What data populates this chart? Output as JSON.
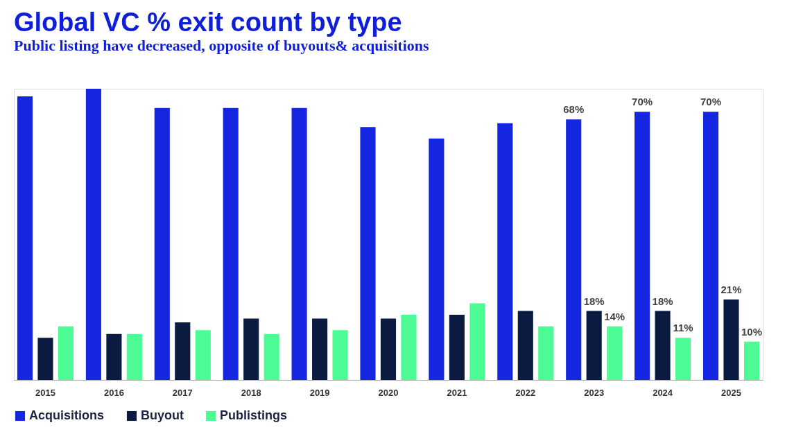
{
  "chart_data": {
    "type": "bar",
    "title": "Global VC % exit count by type",
    "subtitle": "Public listing have decreased, opposite of buyouts& acquisitions",
    "categories": [
      "2015",
      "2016",
      "2017",
      "2018",
      "2019",
      "2020",
      "2021",
      "2022",
      "2023",
      "2024",
      "2025"
    ],
    "series": [
      {
        "name": "Acquisitions",
        "color": "#1426e0",
        "values": [
          74,
          76,
          71,
          71,
          71,
          66,
          63,
          67,
          68,
          70,
          70
        ],
        "value_labels": [
          null,
          null,
          null,
          null,
          null,
          null,
          null,
          null,
          "68%",
          "70%",
          "70%"
        ]
      },
      {
        "name": "Buyout",
        "color": "#0b1a40",
        "values": [
          11,
          12,
          15,
          16,
          16,
          16,
          17,
          18,
          18,
          18,
          21
        ],
        "value_labels": [
          null,
          null,
          null,
          null,
          null,
          null,
          null,
          null,
          "18%",
          "18%",
          "21%"
        ]
      },
      {
        "name": "Publistings",
        "color": "#4dfb95",
        "values": [
          14,
          12,
          13,
          12,
          13,
          17,
          20,
          14,
          14,
          11,
          10
        ],
        "value_labels": [
          null,
          null,
          null,
          null,
          null,
          null,
          null,
          null,
          "14%",
          "11%",
          "10%"
        ]
      }
    ],
    "legend": "bottom"
  }
}
